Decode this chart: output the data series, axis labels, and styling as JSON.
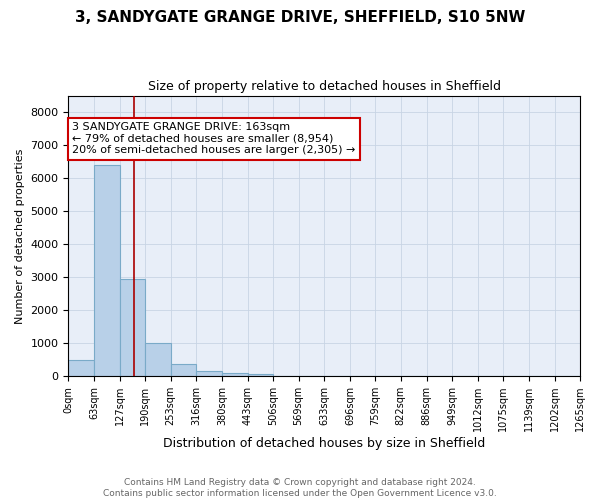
{
  "title1": "3, SANDYGATE GRANGE DRIVE, SHEFFIELD, S10 5NW",
  "title2": "Size of property relative to detached houses in Sheffield",
  "xlabel": "Distribution of detached houses by size in Sheffield",
  "ylabel": "Number of detached properties",
  "bar_edges": [
    0,
    63,
    127,
    190,
    253,
    316,
    380,
    443,
    506,
    569,
    633,
    696,
    759,
    822,
    886,
    949,
    1012,
    1075,
    1139,
    1202,
    1265
  ],
  "bar_heights": [
    500,
    6400,
    2950,
    1000,
    380,
    170,
    100,
    55,
    0,
    0,
    0,
    0,
    0,
    0,
    0,
    0,
    0,
    0,
    0,
    0
  ],
  "bar_color": "#b8d0e8",
  "bar_edge_color": "#7aaac8",
  "bar_linewidth": 0.8,
  "red_line_x": 163,
  "red_line_color": "#aa0000",
  "annotation_text": "3 SANDYGATE GRANGE DRIVE: 163sqm\n← 79% of detached houses are smaller (8,954)\n20% of semi-detached houses are larger (2,305) →",
  "annotation_box_color": "#ffffff",
  "annotation_box_edge": "#cc0000",
  "ylim": [
    0,
    8500
  ],
  "yticks": [
    0,
    1000,
    2000,
    3000,
    4000,
    5000,
    6000,
    7000,
    8000
  ],
  "xtick_labels": [
    "0sqm",
    "63sqm",
    "127sqm",
    "190sqm",
    "253sqm",
    "316sqm",
    "380sqm",
    "443sqm",
    "506sqm",
    "569sqm",
    "633sqm",
    "696sqm",
    "759sqm",
    "822sqm",
    "886sqm",
    "949sqm",
    "1012sqm",
    "1075sqm",
    "1139sqm",
    "1202sqm",
    "1265sqm"
  ],
  "footer_text": "Contains HM Land Registry data © Crown copyright and database right 2024.\nContains public sector information licensed under the Open Government Licence v3.0.",
  "grid_color": "#c8d4e4",
  "bg_color": "#e8eef8",
  "fig_bg_color": "#ffffff",
  "title1_fontsize": 11,
  "title2_fontsize": 9,
  "ylabel_fontsize": 8,
  "xlabel_fontsize": 9,
  "ytick_fontsize": 8,
  "xtick_fontsize": 7,
  "footer_fontsize": 6.5
}
